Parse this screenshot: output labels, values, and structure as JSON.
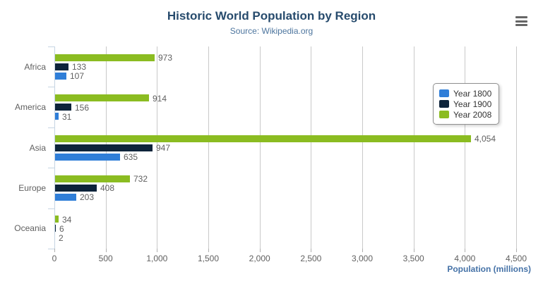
{
  "title": "Historic World Population by Region",
  "subtitle": "Source: Wikipedia.org",
  "menu": {
    "icon": "hamburger-menu"
  },
  "chart_data": {
    "type": "bar",
    "orientation": "horizontal",
    "title": "Historic World Population by Region",
    "subtitle": "Source: Wikipedia.org",
    "categories": [
      "Africa",
      "America",
      "Asia",
      "Europe",
      "Oceania"
    ],
    "series": [
      {
        "name": "Year 1800",
        "color": "#2f7ed8",
        "values": [
          107,
          31,
          635,
          203,
          2
        ]
      },
      {
        "name": "Year 1900",
        "color": "#0d233a",
        "values": [
          133,
          156,
          947,
          408,
          6
        ]
      },
      {
        "name": "Year 2008",
        "color": "#8bbc21",
        "values": [
          973,
          914,
          4054,
          732,
          34
        ]
      }
    ],
    "xlabel": "Population (millions)",
    "ylabel": "",
    "xlim": [
      0,
      4500
    ],
    "xticks": [
      0,
      500,
      1000,
      1500,
      2000,
      2500,
      3000,
      3500,
      4000,
      4500
    ],
    "xtick_labels": [
      "0",
      "500",
      "1,000",
      "1,500",
      "2,000",
      "2,500",
      "3,000",
      "3,500",
      "4,000",
      "4,500"
    ],
    "grid": true,
    "legend_position": "right",
    "data_labels": true,
    "colors": {
      "title": "#274b6d",
      "subtitle": "#4d759e",
      "axis_title": "#4572a7",
      "labels": "#606060",
      "gridline": "#c9c9c9",
      "category_axis_line": "#c6d5e3"
    }
  }
}
